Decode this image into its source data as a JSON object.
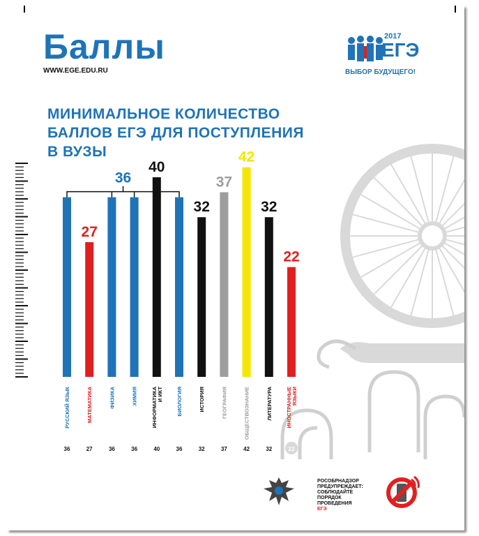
{
  "header": {
    "title": "Баллы",
    "site": "WWW.EGE.EDU.RU",
    "headline_lines": [
      "МИНИМАЛЬНОЕ КОЛИЧЕСТВО",
      "БАЛЛОВ ЕГЭ ДЛЯ ПОСТУПЛЕНИЯ",
      "В ВУЗЫ"
    ]
  },
  "logo": {
    "year": "2017",
    "name": "ЕГЭ",
    "tagline": "ВЫБОР БУДУЩЕГО!"
  },
  "footer": {
    "line1": "РОСОБРНАДЗОР",
    "line2": "ПРЕДУПРЕЖДАЕТ:",
    "line3": "СОБЛЮДАЙТЕ",
    "line4": "ПОРЯДОК",
    "line5": "ПРОВЕДЕНИЯ",
    "line6": "ЕГЭ"
  },
  "colors": {
    "blue": "#1f73b7",
    "red": "#e02020",
    "black": "#111111",
    "gray": "#9d9d9f",
    "yellow": "#f5e600"
  },
  "chart_data": {
    "type": "bar",
    "title": "МИНИМАЛЬНОЕ КОЛИЧЕСТВО БАЛЛОВ ЕГЭ ДЛЯ ПОСТУПЛЕНИЯ В ВУЗЫ",
    "categories": [
      "РУССКИЙ ЯЗЫК",
      "МАТЕМАТИКА",
      "ФИЗИКА",
      "ХИМИЯ",
      "ИНФОРМАТИКА И ИКТ",
      "БИОЛОГИЯ",
      "ИСТОРИЯ",
      "ГЕОГРАФИЯ",
      "ОБЩЕСТВОЗНАНИЕ",
      "ЛИТЕРАТУРА",
      "ИНОСТРАННЫЕ ЯЗЫКИ"
    ],
    "values": [
      36,
      27,
      36,
      36,
      40,
      36,
      32,
      37,
      42,
      32,
      22
    ],
    "bar_colors": [
      "#1f73b7",
      "#e02020",
      "#1f73b7",
      "#1f73b7",
      "#111111",
      "#1f73b7",
      "#111111",
      "#9d9d9f",
      "#f5e600",
      "#111111",
      "#e02020"
    ],
    "label_colors": [
      "#1f73b7",
      "#e02020",
      "#1f73b7",
      "#1f73b7",
      "#111111",
      "#1f73b7",
      "#111111",
      "#9d9d9f",
      "#f5e600",
      "#111111",
      "#e02020"
    ],
    "category_colors": [
      "#1f73b7",
      "#e02020",
      "#1f73b7",
      "#1f73b7",
      "#111111",
      "#1f73b7",
      "#111111",
      "#9d9d9f",
      "#9d9d9f",
      "#111111",
      "#e02020"
    ],
    "bottom_labels": [
      "36",
      "27",
      "36",
      "36",
      "40",
      "36",
      "32",
      "37",
      "42",
      "32",
      "22"
    ],
    "group_label": "36",
    "ylim": [
      0,
      45
    ],
    "grid": false,
    "xlabel": "",
    "ylabel": ""
  }
}
